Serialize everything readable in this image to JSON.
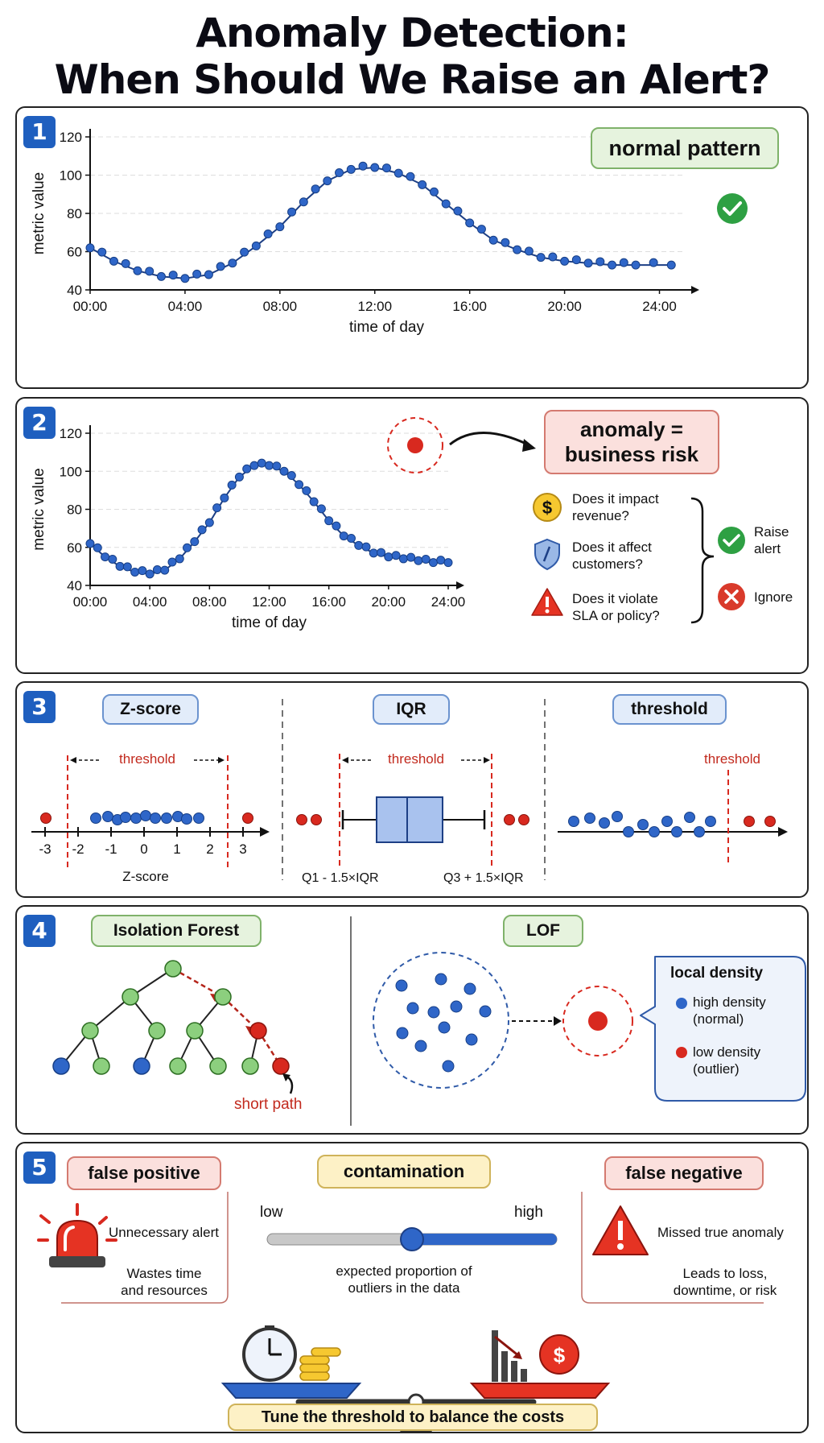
{
  "title": {
    "line1": "Anomaly Detection:",
    "line2": "When Should We Raise an Alert?"
  },
  "panel1": {
    "number": "1",
    "badge": "normal pattern",
    "icon": "check-circle-icon",
    "chart_data": {
      "type": "scatter",
      "title": "",
      "xlabel": "time of day",
      "ylabel": "metric value",
      "x_ticks": [
        "00:00",
        "04:00",
        "08:00",
        "12:00",
        "16:00",
        "20:00",
        "24:00"
      ],
      "y_ticks": [
        40,
        60,
        80,
        100,
        120
      ],
      "xlim": [
        0,
        25
      ],
      "ylim": [
        40,
        120
      ],
      "grid": true,
      "series": [
        {
          "values": [
            [
              0,
              62
            ],
            [
              1,
              55
            ],
            [
              2,
              50
            ],
            [
              3,
              47
            ],
            [
              4,
              46
            ],
            [
              5,
              48
            ],
            [
              6,
              54
            ],
            [
              7,
              63
            ],
            [
              8,
              73
            ],
            [
              9,
              86
            ],
            [
              10,
              97
            ],
            [
              11,
              103
            ],
            [
              12,
              104
            ],
            [
              13,
              101
            ],
            [
              14,
              95
            ],
            [
              15,
              85
            ],
            [
              16,
              75
            ],
            [
              17,
              66
            ],
            [
              18,
              61
            ],
            [
              19,
              57
            ],
            [
              20,
              55
            ],
            [
              21,
              54
            ],
            [
              22,
              53
            ],
            [
              23,
              53
            ],
            [
              24.5,
              53
            ]
          ]
        }
      ]
    }
  },
  "panel2": {
    "number": "2",
    "badge": "anomaly =\nbusiness risk",
    "questions": [
      {
        "icon": "dollar-coin-icon",
        "text": "Does it impact\nrevenue?"
      },
      {
        "icon": "shield-icon",
        "text": "Does it affect\ncustomers?"
      },
      {
        "icon": "warning-triangle-icon",
        "text": "Does it violate\nSLA or policy?"
      }
    ],
    "outcomes": [
      {
        "icon": "check-circle-icon",
        "text": "Raise\nalert",
        "color": "#2ea043"
      },
      {
        "icon": "x-circle-icon",
        "text": "Ignore",
        "color": "#d93a2b"
      }
    ],
    "chart_data": {
      "type": "scatter",
      "title": "",
      "xlabel": "time of day",
      "ylabel": "metric value",
      "x_ticks": [
        "00:00",
        "04:00",
        "08:00",
        "12:00",
        "16:00",
        "20:00",
        "24:00"
      ],
      "y_ticks": [
        40,
        60,
        80,
        100,
        120
      ],
      "xlim": [
        0,
        24
      ],
      "ylim": [
        40,
        120
      ],
      "grid": true,
      "series": [
        {
          "values": [
            [
              0,
              62
            ],
            [
              1,
              55
            ],
            [
              2,
              50
            ],
            [
              3,
              47
            ],
            [
              4,
              46
            ],
            [
              5,
              48
            ],
            [
              6,
              54
            ],
            [
              7,
              63
            ],
            [
              8,
              73
            ],
            [
              9,
              86
            ],
            [
              10,
              97
            ],
            [
              11,
              103
            ],
            [
              12,
              103
            ],
            [
              13,
              100
            ],
            [
              14,
              93
            ],
            [
              15,
              84
            ],
            [
              16,
              74
            ],
            [
              17,
              66
            ],
            [
              18,
              61
            ],
            [
              19,
              57
            ],
            [
              20,
              55
            ],
            [
              21,
              54
            ],
            [
              22,
              53
            ],
            [
              23,
              52
            ],
            [
              24,
              52
            ]
          ]
        }
      ]
    }
  },
  "panel3": {
    "number": "3",
    "zscore": {
      "badge": "Z-score",
      "threshold": "threshold",
      "ticks": [
        "-3",
        "-2",
        "-1",
        "0",
        "1",
        "2",
        "3"
      ],
      "axis_label": "Z-score"
    },
    "iqr": {
      "badge": "IQR",
      "threshold": "threshold",
      "left_label": "Q1 - 1.5×IQR",
      "right_label": "Q3 + 1.5×IQR"
    },
    "threshold": {
      "badge": "threshold",
      "threshold": "threshold"
    }
  },
  "panel4": {
    "number": "4",
    "iforest": {
      "badge": "Isolation Forest",
      "note": "short path"
    },
    "lof": {
      "badge": "LOF",
      "legend_title": "local density",
      "legend": [
        {
          "text": "high density\n(normal)",
          "color": "#2f66c8"
        },
        {
          "text": "low density\n(outlier)",
          "color": "#d8291f"
        }
      ]
    }
  },
  "panel5": {
    "number": "5",
    "false_positive": {
      "badge": "false positive",
      "icon": "siren-icon",
      "line1": "Unnecessary alert",
      "line2": "Wastes time\nand resources"
    },
    "contamination": {
      "badge": "contamination",
      "low": "low",
      "high": "high",
      "level": 0.5,
      "caption": "expected proportion of\noutliers in the data"
    },
    "false_negative": {
      "badge": "false negative",
      "icon": "warning-triangle-icon",
      "line1": "Missed true anomaly",
      "line2": "Leads to loss,\ndowntime, or risk"
    },
    "footer": "Tune the threshold to balance the costs"
  },
  "colors": {
    "blue_point": "#2f66c8",
    "red_point": "#d8291f",
    "green_node": "#8ccf7e",
    "panel_number": "#1f5fbf"
  }
}
